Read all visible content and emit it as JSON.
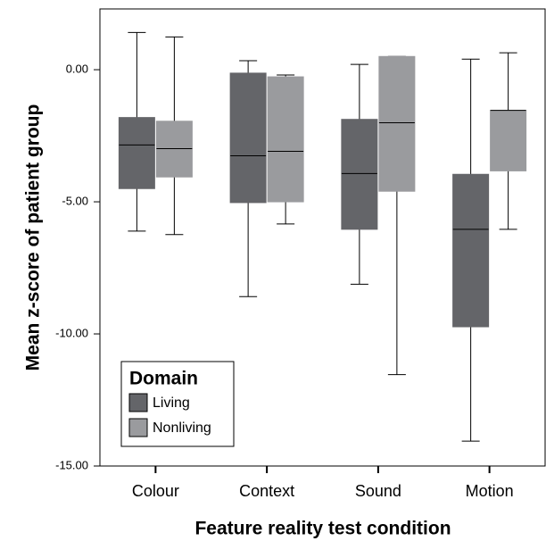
{
  "chart_data": {
    "type": "box",
    "x_label": "Feature reality test condition",
    "y_label": "Mean z-score of patient group",
    "categories": [
      "Colour",
      "Context",
      "Sound",
      "Motion"
    ],
    "ylim": [
      -15,
      2.3
    ],
    "yticks": [
      {
        "value": 0,
        "label": "0.00"
      },
      {
        "value": -5,
        "label": "-5.00"
      },
      {
        "value": -10,
        "label": "-10.00"
      },
      {
        "value": -15,
        "label": "-15.00"
      }
    ],
    "legend_title": "Domain",
    "legend_position": "lower left",
    "series": [
      {
        "name": "Living",
        "color": "#646569",
        "max": [
          1.41,
          0.34,
          0.2,
          0.4
        ],
        "q3": [
          -1.81,
          -0.13,
          -1.88,
          -3.96
        ],
        "median": [
          -2.85,
          -3.26,
          -3.93,
          -6.04
        ],
        "q1": [
          -4.5,
          -5.03,
          -6.04,
          -9.73
        ],
        "min": [
          -6.11,
          -8.59,
          -8.12,
          -14.06
        ]
      },
      {
        "name": "Nonliving",
        "color": "#9a9b9e",
        "max": [
          1.24,
          -0.2,
          0.5,
          0.64
        ],
        "q3": [
          -1.95,
          -0.27,
          0.5,
          -1.54
        ],
        "median": [
          -2.99,
          -3.09,
          -2.01,
          -1.54
        ],
        "q1": [
          -4.06,
          -5.0,
          -4.6,
          -3.83
        ],
        "min": [
          -6.24,
          -5.84,
          -11.54,
          -6.04
        ]
      }
    ]
  }
}
